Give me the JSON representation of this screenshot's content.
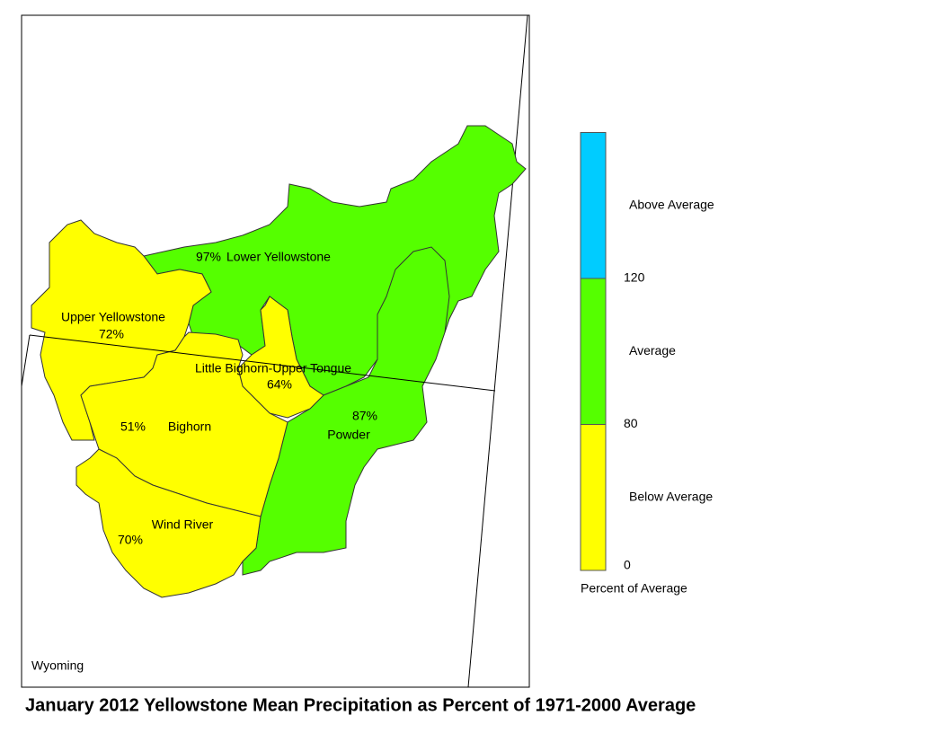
{
  "map": {
    "title": "January 2012 Yellowstone Mean Precipitation as Percent of 1971-2000 Average",
    "state_label": "Wyoming",
    "regions": [
      {
        "name": "Lower Yellowstone",
        "percent_label": "97%",
        "color": "#55ff00"
      },
      {
        "name": "Powder",
        "percent_label": "87%",
        "color": "#55ff00"
      },
      {
        "name": "Upper Yellowstone",
        "percent_label": "72%",
        "color": "#ffff00"
      },
      {
        "name": "Little Bighorn-Upper Tongue",
        "percent_label": "64%",
        "color": "#ffff00"
      },
      {
        "name": "Bighorn",
        "percent_label": "51%",
        "color": "#ffff00"
      },
      {
        "name": "Wind River",
        "percent_label": "70%",
        "color": "#ffff00"
      }
    ],
    "legend": {
      "title": "Percent of Average",
      "classes": [
        {
          "label": "Below Average",
          "color": "#ffff00"
        },
        {
          "label": "Average",
          "color": "#55ff00"
        },
        {
          "label": "Above Average",
          "color": "#00ccff"
        }
      ],
      "breaks": [
        0,
        80,
        120
      ]
    }
  }
}
